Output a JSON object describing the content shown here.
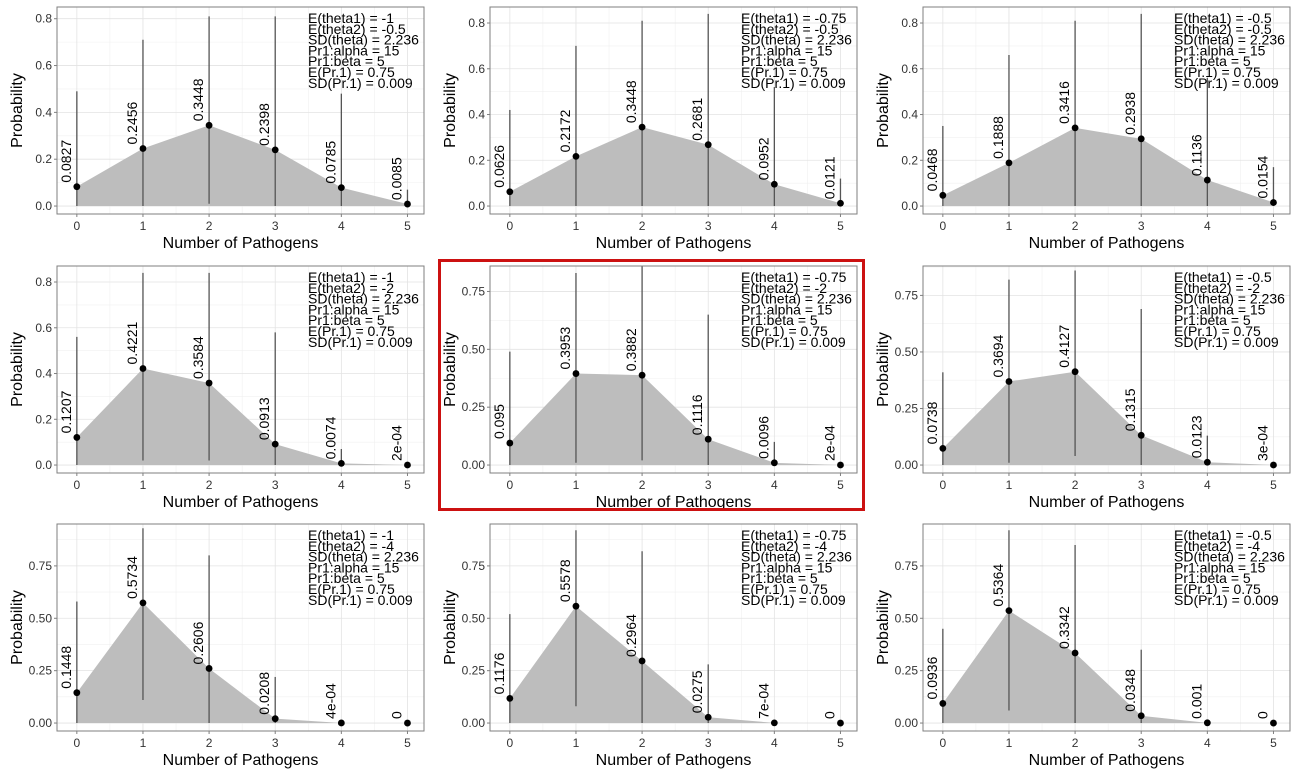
{
  "highlight_color": "#cc1111",
  "area_color": "#bdbdbd",
  "chart_data": [
    {
      "type": "area",
      "xlabel": "Number of Pathogens",
      "ylabel": "Probability",
      "x": [
        0,
        1,
        2,
        3,
        4,
        5
      ],
      "ylim": [
        0,
        0.85
      ],
      "yticks": [
        "0.0",
        "0.2",
        "0.4",
        "0.6",
        "0.8"
      ],
      "ytick_values": [
        0,
        0.2,
        0.4,
        0.6,
        0.8
      ],
      "values": [
        0.0827,
        0.2456,
        0.3448,
        0.2398,
        0.0785,
        0.0085
      ],
      "labels": [
        "0.0827",
        "0.2456",
        "0.3448",
        "0.2398",
        "0.0785",
        "0.0085"
      ],
      "interval_high": [
        0.49,
        0.71,
        0.81,
        0.81,
        0.48,
        0.07
      ],
      "interval_low": [
        0,
        0,
        0.01,
        0,
        0,
        0
      ],
      "annotation": [
        "E(theta1) = -1",
        "E(theta2) = -0.5",
        "SD(theta) = 2.236",
        "Pr1:alpha = 15",
        "Pr1:beta = 5",
        "E(Pr.1) = 0.75",
        "SD(Pr.1) = 0.009"
      ],
      "highlighted": false,
      "grid": true
    },
    {
      "type": "area",
      "xlabel": "Number of Pathogens",
      "ylabel": "Probability",
      "x": [
        0,
        1,
        2,
        3,
        4,
        5
      ],
      "ylim": [
        0,
        0.87
      ],
      "yticks": [
        "0.0",
        "0.2",
        "0.4",
        "0.6",
        "0.8"
      ],
      "ytick_values": [
        0,
        0.2,
        0.4,
        0.6,
        0.8
      ],
      "values": [
        0.0626,
        0.2172,
        0.3448,
        0.2681,
        0.0952,
        0.0121
      ],
      "labels": [
        "0.0626",
        "0.2172",
        "0.3448",
        "0.2681",
        "0.0952",
        "0.0121"
      ],
      "interval_high": [
        0.42,
        0.7,
        0.81,
        0.84,
        0.52,
        0.12
      ],
      "interval_low": [
        0,
        0,
        0,
        0,
        0,
        0
      ],
      "annotation": [
        "E(theta1) = -0.75",
        "E(theta2) = -0.5",
        "SD(theta) = 2.236",
        "Pr1:alpha = 15",
        "Pr1:beta = 5",
        "E(Pr.1) = 0.75",
        "SD(Pr.1) = 0.009"
      ],
      "highlighted": false,
      "grid": true
    },
    {
      "type": "area",
      "xlabel": "Number of Pathogens",
      "ylabel": "Probability",
      "x": [
        0,
        1,
        2,
        3,
        4,
        5
      ],
      "ylim": [
        0,
        0.87
      ],
      "yticks": [
        "0.0",
        "0.2",
        "0.4",
        "0.6",
        "0.8"
      ],
      "ytick_values": [
        0,
        0.2,
        0.4,
        0.6,
        0.8
      ],
      "values": [
        0.0468,
        0.1888,
        0.3416,
        0.2938,
        0.1136,
        0.0154
      ],
      "labels": [
        "0.0468",
        "0.1888",
        "0.3416",
        "0.2938",
        "0.1136",
        "0.0154"
      ],
      "interval_high": [
        0.35,
        0.66,
        0.81,
        0.84,
        0.56,
        0.17
      ],
      "interval_low": [
        0,
        0,
        0,
        0,
        0,
        0
      ],
      "annotation": [
        "E(theta1) = -0.5",
        "E(theta2) = -0.5",
        "SD(theta) = 2.236",
        "Pr1:alpha = 15",
        "Pr1:beta = 5",
        "E(Pr.1) = 0.75",
        "SD(Pr.1) = 0.009"
      ],
      "highlighted": false,
      "grid": true
    },
    {
      "type": "area",
      "xlabel": "Number of Pathogens",
      "ylabel": "Probability",
      "x": [
        0,
        1,
        2,
        3,
        4,
        5
      ],
      "ylim": [
        0,
        0.87
      ],
      "yticks": [
        "0.0",
        "0.2",
        "0.4",
        "0.6",
        "0.8"
      ],
      "ytick_values": [
        0,
        0.2,
        0.4,
        0.6,
        0.8
      ],
      "values": [
        0.1207,
        0.4221,
        0.3584,
        0.0913,
        0.0074,
        0.0002
      ],
      "labels": [
        "0.1207",
        "0.4221",
        "0.3584",
        "0.0913",
        "0.0074",
        "2e-04"
      ],
      "interval_high": [
        0.56,
        0.84,
        0.84,
        0.58,
        0.07,
        0
      ],
      "interval_low": [
        0,
        0.02,
        0.02,
        0,
        0,
        0
      ],
      "annotation": [
        "E(theta1) = -1",
        "E(theta2) = -2",
        "SD(theta) = 2.236",
        "Pr1:alpha = 15",
        "Pr1:beta = 5",
        "E(Pr.1) = 0.75",
        "SD(Pr.1) = 0.009"
      ],
      "highlighted": false,
      "grid": true
    },
    {
      "type": "area",
      "xlabel": "Number of Pathogens",
      "ylabel": "Probability",
      "x": [
        0,
        1,
        2,
        3,
        4,
        5
      ],
      "ylim": [
        0,
        0.86
      ],
      "yticks": [
        "0.00",
        "0.25",
        "0.50",
        "0.75"
      ],
      "ytick_values": [
        0,
        0.25,
        0.5,
        0.75
      ],
      "values": [
        0.095,
        0.3953,
        0.3882,
        0.1116,
        0.0096,
        0.0002
      ],
      "labels": [
        "0.095",
        "0.3953",
        "0.3882",
        "0.1116",
        "0.0096",
        "2e-04"
      ],
      "interval_high": [
        0.49,
        0.83,
        0.86,
        0.65,
        0.1,
        0
      ],
      "interval_low": [
        0,
        0.01,
        0.02,
        0,
        0,
        0
      ],
      "annotation": [
        "E(theta1) = -0.75",
        "E(theta2) = -2",
        "SD(theta) = 2.236",
        "Pr1:alpha = 15",
        "Pr1:beta = 5",
        "E(Pr.1) = 0.75",
        "SD(Pr.1) = 0.009"
      ],
      "highlighted": true,
      "grid": true
    },
    {
      "type": "area",
      "xlabel": "Number of Pathogens",
      "ylabel": "Probability",
      "x": [
        0,
        1,
        2,
        3,
        4,
        5
      ],
      "ylim": [
        0,
        0.88
      ],
      "yticks": [
        "0.00",
        "0.25",
        "0.50",
        "0.75"
      ],
      "ytick_values": [
        0,
        0.25,
        0.5,
        0.75
      ],
      "values": [
        0.0738,
        0.3694,
        0.4127,
        0.1315,
        0.0123,
        0.0003
      ],
      "labels": [
        "0.0738",
        "0.3694",
        "0.4127",
        "0.1315",
        "0.0123",
        "3e-04"
      ],
      "interval_high": [
        0.41,
        0.82,
        0.86,
        0.69,
        0.13,
        0
      ],
      "interval_low": [
        0,
        0.01,
        0.04,
        0,
        0,
        0
      ],
      "annotation": [
        "E(theta1) = -0.5",
        "E(theta2) = -2",
        "SD(theta) = 2.236",
        "Pr1:alpha = 15",
        "Pr1:beta = 5",
        "E(Pr.1) = 0.75",
        "SD(Pr.1) = 0.009"
      ],
      "highlighted": false,
      "grid": true
    },
    {
      "type": "area",
      "xlabel": "Number of Pathogens",
      "ylabel": "Probability",
      "x": [
        0,
        1,
        2,
        3,
        4,
        5
      ],
      "ylim": [
        0,
        0.95
      ],
      "yticks": [
        "0.00",
        "0.25",
        "0.50",
        "0.75"
      ],
      "ytick_values": [
        0,
        0.25,
        0.5,
        0.75
      ],
      "values": [
        0.1448,
        0.5734,
        0.2606,
        0.0208,
        0.0004,
        0
      ],
      "labels": [
        "0.1448",
        "0.5734",
        "0.2606",
        "0.0208",
        "4e-04",
        "0"
      ],
      "interval_high": [
        0.58,
        0.93,
        0.8,
        0.22,
        0,
        0
      ],
      "interval_low": [
        0,
        0.11,
        0,
        0,
        0,
        0
      ],
      "annotation": [
        "E(theta1) = -1",
        "E(theta2) = -4",
        "SD(theta) = 2.236",
        "Pr1:alpha = 15",
        "Pr1:beta = 5",
        "E(Pr.1) = 0.75",
        "SD(Pr.1) = 0.009"
      ],
      "highlighted": false,
      "grid": true
    },
    {
      "type": "area",
      "xlabel": "Number of Pathogens",
      "ylabel": "Probability",
      "x": [
        0,
        1,
        2,
        3,
        4,
        5
      ],
      "ylim": [
        0,
        0.95
      ],
      "yticks": [
        "0.00",
        "0.25",
        "0.50",
        "0.75"
      ],
      "ytick_values": [
        0,
        0.25,
        0.5,
        0.75
      ],
      "values": [
        0.1176,
        0.5578,
        0.2964,
        0.0275,
        0.0007,
        0
      ],
      "labels": [
        "0.1176",
        "0.5578",
        "0.2964",
        "0.0275",
        "7e-04",
        "0"
      ],
      "interval_high": [
        0.52,
        0.92,
        0.82,
        0.28,
        0,
        0
      ],
      "interval_low": [
        0,
        0.08,
        0,
        0,
        0,
        0
      ],
      "annotation": [
        "E(theta1) = -0.75",
        "E(theta2) = -4",
        "SD(theta) = 2.236",
        "Pr1:alpha = 15",
        "Pr1:beta = 5",
        "E(Pr.1) = 0.75",
        "SD(Pr.1) = 0.009"
      ],
      "highlighted": false,
      "grid": true
    },
    {
      "type": "area",
      "xlabel": "Number of Pathogens",
      "ylabel": "Probability",
      "x": [
        0,
        1,
        2,
        3,
        4,
        5
      ],
      "ylim": [
        0,
        0.95
      ],
      "yticks": [
        "0.00",
        "0.25",
        "0.50",
        "0.75"
      ],
      "ytick_values": [
        0,
        0.25,
        0.5,
        0.75
      ],
      "values": [
        0.0936,
        0.5364,
        0.3342,
        0.0348,
        0.001,
        0
      ],
      "labels": [
        "0.0936",
        "0.5364",
        "0.3342",
        "0.0348",
        "0.001",
        "0"
      ],
      "interval_high": [
        0.45,
        0.92,
        0.85,
        0.35,
        0,
        0
      ],
      "interval_low": [
        0,
        0.06,
        0,
        0,
        0,
        0
      ],
      "annotation": [
        "E(theta1) = -0.5",
        "E(theta2) = -4",
        "SD(theta) = 2.236",
        "Pr1:alpha = 15",
        "Pr1:beta = 5",
        "E(Pr.1) = 0.75",
        "SD(Pr.1) = 0.009"
      ],
      "highlighted": false,
      "grid": true
    }
  ]
}
